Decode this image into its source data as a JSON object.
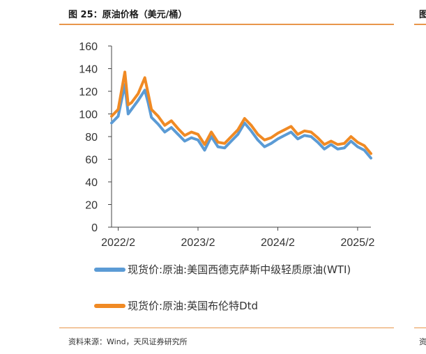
{
  "figure": {
    "title": "图 25：原油价格（美元/桶）",
    "source": "资料来源：Wind，天风证券研究所",
    "edge_title_fragment": "图",
    "edge_source_fragment": "资"
  },
  "chart_data": {
    "type": "line",
    "title": "原油价格（美元/桶）",
    "xlabel": "",
    "ylabel": "",
    "ylim": [
      0,
      160
    ],
    "yticks": [
      "0",
      "20",
      "40",
      "60",
      "80",
      "100",
      "120",
      "140",
      "160"
    ],
    "xticks": [
      "2022/2",
      "2023/2",
      "2024/2",
      "2025/2"
    ],
    "xlim": [
      "2022/1",
      "2025/4"
    ],
    "series": [
      {
        "name": "现货价:原油:美国西德克萨斯中级轻质原油(WTI)",
        "color": "#5b9bd5",
        "points": [
          [
            "2022/1",
            92
          ],
          [
            "2022/2",
            98
          ],
          [
            "2022/3",
            126
          ],
          [
            "2022/3b",
            100
          ],
          [
            "2022/4",
            104
          ],
          [
            "2022/5",
            112
          ],
          [
            "2022/6",
            121
          ],
          [
            "2022/6b",
            110
          ],
          [
            "2022/7",
            97
          ],
          [
            "2022/8",
            91
          ],
          [
            "2022/9",
            84
          ],
          [
            "2022/10",
            88
          ],
          [
            "2022/11",
            82
          ],
          [
            "2022/12",
            76
          ],
          [
            "2023/1",
            79
          ],
          [
            "2023/2",
            77
          ],
          [
            "2023/3",
            68
          ],
          [
            "2023/4",
            80
          ],
          [
            "2023/5",
            71
          ],
          [
            "2023/6",
            70
          ],
          [
            "2023/7",
            76
          ],
          [
            "2023/8",
            82
          ],
          [
            "2023/9",
            92
          ],
          [
            "2023/10",
            85
          ],
          [
            "2023/11",
            77
          ],
          [
            "2023/12",
            71
          ],
          [
            "2024/1",
            74
          ],
          [
            "2024/2",
            78
          ],
          [
            "2024/3",
            81
          ],
          [
            "2024/4",
            84
          ],
          [
            "2024/5",
            78
          ],
          [
            "2024/6",
            81
          ],
          [
            "2024/7",
            80
          ],
          [
            "2024/8",
            75
          ],
          [
            "2024/9",
            69
          ],
          [
            "2024/10",
            73
          ],
          [
            "2024/11",
            69
          ],
          [
            "2024/12",
            70
          ],
          [
            "2025/1",
            76
          ],
          [
            "2025/2",
            71
          ],
          [
            "2025/3",
            68
          ],
          [
            "2025/4",
            61
          ]
        ]
      },
      {
        "name": "现货价:原油:英国布伦特Dtd",
        "color": "#f08a24",
        "points": [
          [
            "2022/1",
            98
          ],
          [
            "2022/2",
            104
          ],
          [
            "2022/3",
            137
          ],
          [
            "2022/3b",
            108
          ],
          [
            "2022/4",
            110
          ],
          [
            "2022/5",
            118
          ],
          [
            "2022/6",
            132
          ],
          [
            "2022/6b",
            118
          ],
          [
            "2022/7",
            104
          ],
          [
            "2022/8",
            98
          ],
          [
            "2022/9",
            90
          ],
          [
            "2022/10",
            94
          ],
          [
            "2022/11",
            87
          ],
          [
            "2022/12",
            81
          ],
          [
            "2023/1",
            84
          ],
          [
            "2023/2",
            82
          ],
          [
            "2023/3",
            73
          ],
          [
            "2023/4",
            84
          ],
          [
            "2023/5",
            75
          ],
          [
            "2023/6",
            74
          ],
          [
            "2023/7",
            80
          ],
          [
            "2023/8",
            86
          ],
          [
            "2023/9",
            96
          ],
          [
            "2023/10",
            90
          ],
          [
            "2023/11",
            82
          ],
          [
            "2023/12",
            77
          ],
          [
            "2024/1",
            79
          ],
          [
            "2024/2",
            83
          ],
          [
            "2024/3",
            86
          ],
          [
            "2024/4",
            89
          ],
          [
            "2024/5",
            82
          ],
          [
            "2024/6",
            85
          ],
          [
            "2024/7",
            84
          ],
          [
            "2024/8",
            79
          ],
          [
            "2024/9",
            73
          ],
          [
            "2024/10",
            76
          ],
          [
            "2024/11",
            73
          ],
          [
            "2024/12",
            74
          ],
          [
            "2025/1",
            80
          ],
          [
            "2025/2",
            75
          ],
          [
            "2025/3",
            72
          ],
          [
            "2025/4",
            65
          ]
        ]
      }
    ]
  }
}
